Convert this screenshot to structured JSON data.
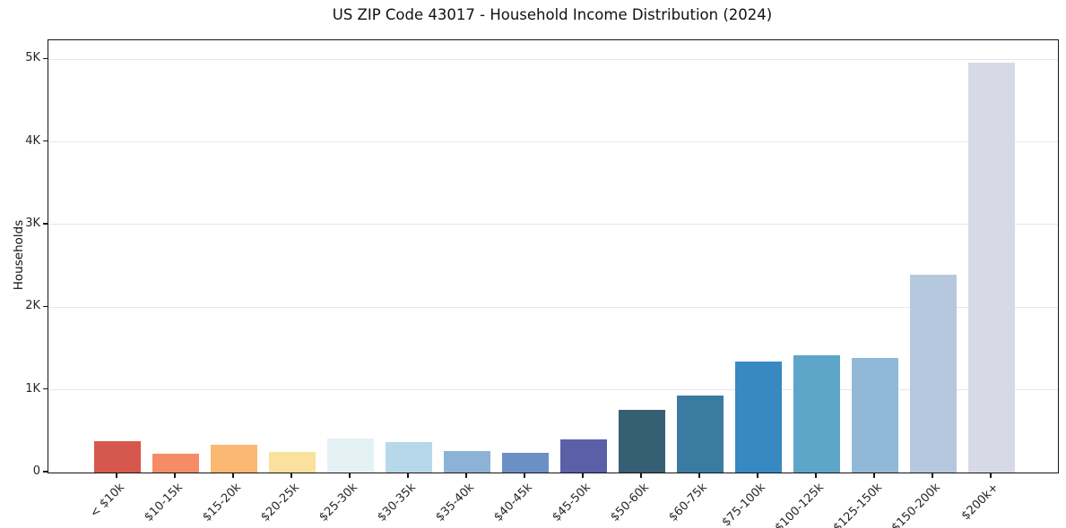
{
  "chart_data": {
    "type": "bar",
    "title": "US ZIP Code 43017 - Household Income Distribution (2024)",
    "xlabel": "",
    "ylabel": "Households",
    "ylim": [
      0,
      5230
    ],
    "grid": "horizontal-light-solid",
    "legend_position": "none",
    "categories": [
      "< $10k",
      "$10-15k",
      "$15-20k",
      "$20-25k",
      "$25-30k",
      "$30-35k",
      "$35-40k",
      "$40-45k",
      "$45-50k",
      "$50-60k",
      "$60-75k",
      "$75-100k",
      "$100-125k",
      "$125-150k",
      "$150-200k",
      "$200k+"
    ],
    "values": [
      380,
      230,
      335,
      250,
      410,
      370,
      255,
      235,
      400,
      760,
      930,
      1340,
      1420,
      1390,
      2390,
      4960
    ],
    "bar_colors": [
      "#d6574d",
      "#f58c66",
      "#fab872",
      "#fae19e",
      "#e4f1f5",
      "#b7d8e9",
      "#8cb3d6",
      "#6b90c4",
      "#5a5fa8",
      "#375f74",
      "#3a7ba1",
      "#3789c2",
      "#5ea6c9",
      "#92b8d8",
      "#b5c8de",
      "#d7d9e7"
    ],
    "y_ticks": [
      {
        "value": 0,
        "label": "0"
      },
      {
        "value": 1000,
        "label": "1K"
      },
      {
        "value": 2000,
        "label": "2K"
      },
      {
        "value": 3000,
        "label": "3K"
      },
      {
        "value": 4000,
        "label": "4K"
      },
      {
        "value": 5000,
        "label": "5K"
      }
    ]
  },
  "colors": {
    "background": "#ffffff",
    "grid": "#e7e7e7",
    "spine": "#141414",
    "tick_text": "#262626",
    "title_text": "#111111"
  }
}
